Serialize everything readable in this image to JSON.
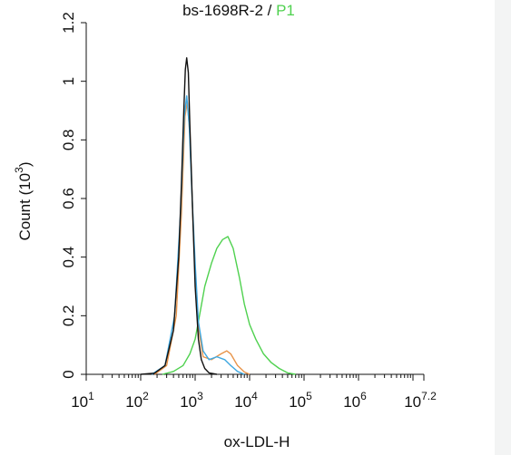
{
  "chart_data": {
    "type": "line",
    "title_sample": "bs-1698R-2",
    "title_separator": " / ",
    "title_gate": "P1",
    "title_gate_color": "#4fd14f",
    "xlabel": "ox-LDL-H",
    "ylabel": "Count (10",
    "ylabel_exp": "3",
    "ylabel_close": ")",
    "x_scale": "log",
    "xlim": [
      10,
      15848931
    ],
    "ylim": [
      0,
      1.2
    ],
    "x_ticks": [
      {
        "base": "10",
        "exp": "1",
        "value": 10
      },
      {
        "base": "10",
        "exp": "2",
        "value": 100
      },
      {
        "base": "10",
        "exp": "3",
        "value": 1000
      },
      {
        "base": "10",
        "exp": "4",
        "value": 10000
      },
      {
        "base": "10",
        "exp": "5",
        "value": 100000
      },
      {
        "base": "10",
        "exp": "6",
        "value": 1000000
      },
      {
        "base": "10",
        "exp": "7.2",
        "value": 15848931
      }
    ],
    "y_ticks": [
      "0",
      "0.2",
      "0.4",
      "0.6",
      "0.8",
      "1",
      "1.2"
    ],
    "y_tick_values": [
      0,
      0.2,
      0.4,
      0.6,
      0.8,
      1.0,
      1.2
    ],
    "series": [
      {
        "color": "#111111",
        "points": [
          [
            100,
            0
          ],
          [
            180,
            0.004
          ],
          [
            280,
            0.03
          ],
          [
            400,
            0.15
          ],
          [
            500,
            0.4
          ],
          [
            560,
            0.65
          ],
          [
            620,
            0.9
          ],
          [
            660,
            1.04
          ],
          [
            700,
            1.08
          ],
          [
            750,
            1.03
          ],
          [
            800,
            0.85
          ],
          [
            900,
            0.55
          ],
          [
            1000,
            0.3
          ],
          [
            1150,
            0.12
          ],
          [
            1300,
            0.05
          ],
          [
            1500,
            0.02
          ],
          [
            1800,
            0.005
          ],
          [
            2500,
            0
          ]
        ]
      },
      {
        "color": "#e8944a",
        "points": [
          [
            180,
            0
          ],
          [
            300,
            0.03
          ],
          [
            450,
            0.2
          ],
          [
            560,
            0.55
          ],
          [
            650,
            0.88
          ],
          [
            720,
            0.93
          ],
          [
            800,
            0.82
          ],
          [
            900,
            0.55
          ],
          [
            1000,
            0.35
          ],
          [
            1150,
            0.16
          ],
          [
            1400,
            0.06
          ],
          [
            2000,
            0.05
          ],
          [
            3000,
            0.07
          ],
          [
            3800,
            0.08
          ],
          [
            4500,
            0.07
          ],
          [
            6000,
            0.03
          ],
          [
            8000,
            0.008
          ],
          [
            10000,
            0
          ]
        ]
      },
      {
        "color": "#3fa8e0",
        "points": [
          [
            160,
            0
          ],
          [
            280,
            0.03
          ],
          [
            420,
            0.2
          ],
          [
            540,
            0.55
          ],
          [
            630,
            0.88
          ],
          [
            700,
            0.95
          ],
          [
            780,
            0.85
          ],
          [
            880,
            0.6
          ],
          [
            1000,
            0.38
          ],
          [
            1150,
            0.18
          ],
          [
            1400,
            0.08
          ],
          [
            1800,
            0.05
          ],
          [
            2500,
            0.06
          ],
          [
            3500,
            0.05
          ],
          [
            4500,
            0.03
          ],
          [
            6000,
            0.01
          ],
          [
            8000,
            0
          ]
        ]
      },
      {
        "color": "#4fd14f",
        "points": [
          [
            250,
            0
          ],
          [
            400,
            0.01
          ],
          [
            600,
            0.03
          ],
          [
            800,
            0.07
          ],
          [
            1000,
            0.12
          ],
          [
            1200,
            0.2
          ],
          [
            1500,
            0.3
          ],
          [
            2000,
            0.38
          ],
          [
            2500,
            0.43
          ],
          [
            3200,
            0.46
          ],
          [
            4000,
            0.47
          ],
          [
            5000,
            0.43
          ],
          [
            6500,
            0.33
          ],
          [
            8000,
            0.24
          ],
          [
            10000,
            0.17
          ],
          [
            13000,
            0.12
          ],
          [
            18000,
            0.07
          ],
          [
            25000,
            0.04
          ],
          [
            35000,
            0.02
          ],
          [
            50000,
            0.005
          ],
          [
            70000,
            0
          ]
        ]
      }
    ]
  }
}
